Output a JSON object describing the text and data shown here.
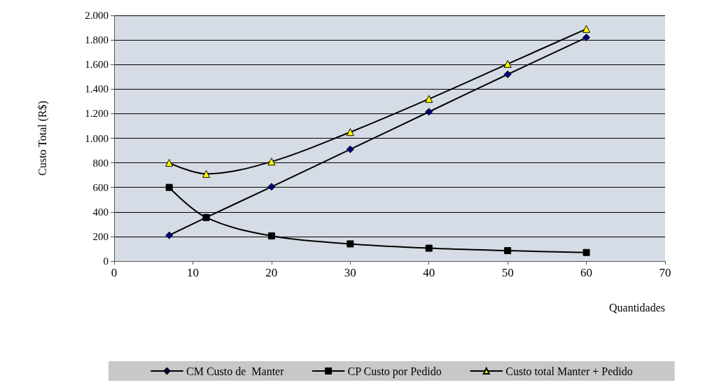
{
  "chart_data": {
    "type": "line",
    "xlabel": "Quantidades",
    "ylabel": "Custo Total (R$)",
    "x": [
      7,
      11.7,
      20,
      30,
      40,
      50,
      60
    ],
    "series": [
      {
        "name": "CM Custo de  Manter",
        "color": "#000080",
        "marker": "diamond",
        "values": [
          210,
          355,
          605,
          910,
          1215,
          1520,
          1820
        ]
      },
      {
        "name": "CP Custo por Pedido",
        "color": "#000000",
        "marker": "square",
        "values": [
          600,
          355,
          205,
          140,
          105,
          85,
          70
        ]
      },
      {
        "name": "Custo total Manter + Pedido",
        "color": "#ffff00",
        "marker": "triangle",
        "values": [
          800,
          710,
          810,
          1050,
          1320,
          1605,
          1890
        ]
      }
    ],
    "xlim": [
      0,
      70
    ],
    "xticks": [
      0,
      10,
      20,
      30,
      40,
      50,
      60,
      70
    ],
    "ylim": [
      0,
      2000
    ],
    "yticks": [
      0,
      200,
      400,
      600,
      800,
      {
        "value": 1000,
        "label": "1.000"
      },
      {
        "value": 1200,
        "label": "1.200"
      },
      {
        "value": 1400,
        "label": "1.400"
      },
      {
        "value": 1600,
        "label": "1.600"
      },
      {
        "value": 1800,
        "label": "1.800"
      },
      {
        "value": 2000,
        "label": "2.000"
      }
    ],
    "grid": "y",
    "legend": "bottom",
    "line_style": "solid"
  }
}
